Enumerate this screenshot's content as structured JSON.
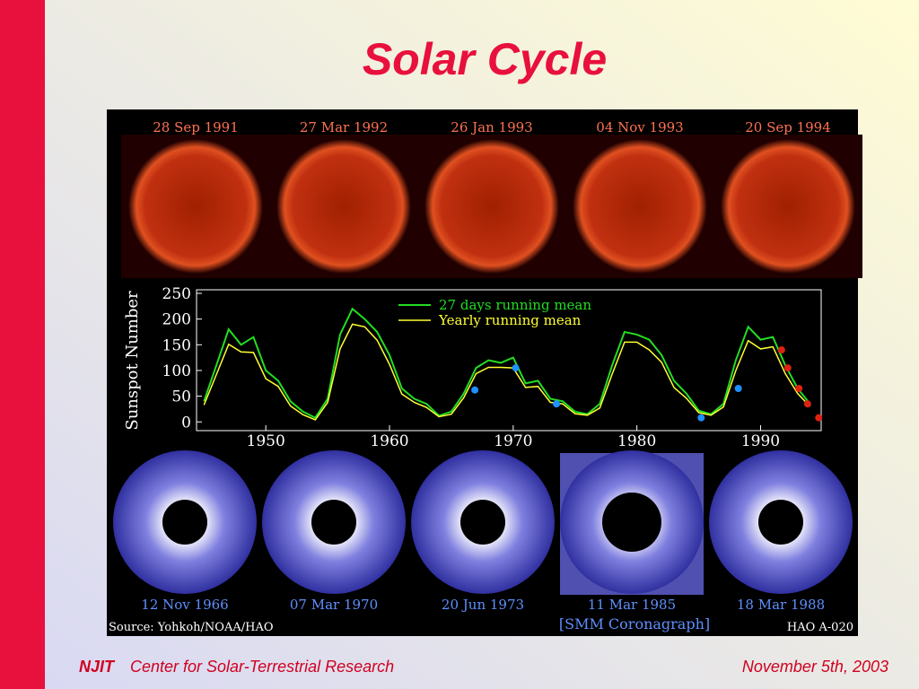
{
  "title": "Solar Cycle",
  "panel": {
    "xray_dates": [
      "28 Sep 1991",
      "27 Mar 1992",
      "26 Jan 1993",
      "04 Nov 1993",
      "20 Sep 1994"
    ],
    "corona_dates": [
      "12 Nov 1966",
      "07 Mar 1970",
      "20 Jun 1973",
      "11 Mar 1985",
      "18 Mar 1988"
    ],
    "corona_note": "[SMM Coronagraph]",
    "source": "Source: Yohkoh/NOAA/HAO",
    "id": "HAO A-020"
  },
  "chart_data": {
    "type": "line",
    "ylabel": "Sunspot Number",
    "x": [
      1945,
      1946,
      1947,
      1948,
      1949,
      1950,
      1951,
      1952,
      1953,
      1954,
      1955,
      1956,
      1957,
      1958,
      1959,
      1960,
      1961,
      1962,
      1963,
      1964,
      1965,
      1966,
      1967,
      1968,
      1969,
      1970,
      1971,
      1972,
      1973,
      1974,
      1975,
      1976,
      1977,
      1978,
      1979,
      1980,
      1981,
      1982,
      1983,
      1984,
      1985,
      1986,
      1987,
      1988,
      1989,
      1990,
      1991,
      1992,
      1993,
      1994
    ],
    "series": [
      {
        "name": "27 days running mean",
        "color": "#22dd22",
        "values": [
          40,
          110,
          180,
          150,
          165,
          100,
          80,
          40,
          20,
          8,
          45,
          170,
          220,
          200,
          175,
          130,
          65,
          45,
          35,
          12,
          20,
          55,
          105,
          120,
          115,
          125,
          75,
          80,
          45,
          40,
          20,
          15,
          35,
          110,
          175,
          170,
          160,
          130,
          80,
          55,
          22,
          15,
          35,
          120,
          185,
          160,
          165,
          110,
          65,
          35
        ]
      },
      {
        "name": "Yearly running mean",
        "color": "#ffff33",
        "values": [
          33,
          92,
          151,
          136,
          135,
          84,
          69,
          31,
          14,
          4,
          38,
          142,
          190,
          185,
          159,
          112,
          54,
          38,
          28,
          10,
          15,
          47,
          94,
          106,
          106,
          105,
          67,
          69,
          38,
          35,
          16,
          13,
          27,
          93,
          155,
          155,
          140,
          116,
          67,
          46,
          18,
          13,
          29,
          100,
          158,
          142,
          146,
          94,
          55,
          30
        ]
      }
    ],
    "markers": [
      {
        "color": "#1e90ff",
        "x": [
          1966.9,
          1970.2,
          1973.5,
          1985.2,
          1988.2
        ],
        "values": [
          62,
          105,
          35,
          8,
          65
        ]
      },
      {
        "color": "#dd2211",
        "x": [
          1991.7,
          1992.2,
          1993.1,
          1993.8,
          1994.7
        ],
        "values": [
          140,
          105,
          65,
          35,
          8
        ]
      }
    ],
    "xlim": [
      1944.4,
      1994.9
    ],
    "ylim": [
      -17,
      257
    ],
    "xticks": [
      1950,
      1960,
      1970,
      1980,
      1990
    ],
    "yticks": [
      0,
      50,
      100,
      150,
      200,
      250
    ]
  },
  "footer": {
    "org": "NJIT",
    "center": "Center for Solar-Terrestrial Research",
    "date": "November 5th, 2003"
  }
}
